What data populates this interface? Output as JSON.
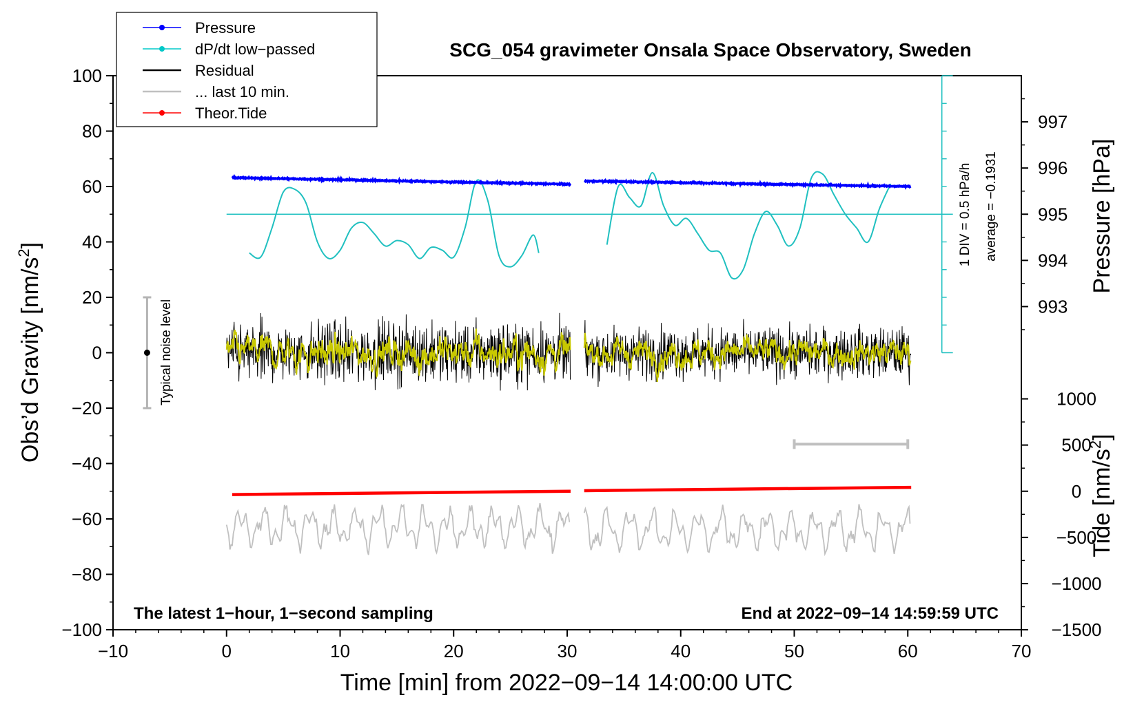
{
  "chart_data": {
    "type": "line",
    "title": "SCG_054 gravimeter Onsala Space Observatory, Sweden",
    "xlabel": "Time [min] from 2022−09−14 14:00:00 UTC",
    "ylabel_left": "Obs’d Gravity [nm/s²]",
    "ylabel_left_main": "Obs’d Gravity [nm/s",
    "ylabel_right_pressure": "Pressure [hPa]",
    "ylabel_right_tide": "Tide [nm/s²]",
    "ylabel_right_tide_main": "Tide [nm/s",
    "sup2": "2",
    "xlim": [
      -10,
      70
    ],
    "ylim": [
      -100,
      100
    ],
    "x_ticks": [
      -10,
      0,
      10,
      20,
      30,
      40,
      50,
      60,
      70
    ],
    "x_tick_labels": [
      "−10",
      "0",
      "10",
      "20",
      "30",
      "40",
      "50",
      "60",
      "70"
    ],
    "y_ticks": [
      -100,
      -80,
      -60,
      -40,
      -20,
      0,
      20,
      40,
      60,
      80,
      100
    ],
    "y_tick_labels": [
      "−100",
      "−80",
      "−60",
      "−40",
      "−20",
      "0",
      "20",
      "40",
      "60",
      "80",
      "100"
    ],
    "pressure_axis": {
      "ticks_hpa": [
        993,
        994,
        995,
        996,
        997
      ],
      "tick_labels": [
        "993",
        "994",
        "995",
        "996",
        "997"
      ],
      "gravity_at_995": 50,
      "gravity_per_hpa": 16.67
    },
    "tide_axis": {
      "ticks": [
        -1500,
        -1000,
        -500,
        0,
        500,
        1000
      ],
      "tick_labels": [
        "−1500",
        "−1000",
        "−500",
        "0",
        "500",
        "1000"
      ],
      "gravity_at_zero": -50,
      "gravity_per_500": 16.67
    },
    "legend": [
      {
        "label": "Pressure",
        "color": "#0000ff",
        "marker": true
      },
      {
        "label": "dP/dt low−passed",
        "color": "#00c8c8",
        "marker": true
      },
      {
        "label": "Residual",
        "color": "#000000",
        "marker": false
      },
      {
        "label": "... last 10 min.",
        "color": "#c0c0c0",
        "marker": false
      },
      {
        "label": "Theor.Tide",
        "color": "#ff0000",
        "marker": true
      }
    ],
    "colors": {
      "pressure": "#0000ff",
      "dpdt": "#20c0c0",
      "residual": "#000000",
      "residual_smooth": "#c8c800",
      "last10": "#c0c0c0",
      "tide": "#ff0000",
      "noise_bar": "#b4b4b4",
      "scale_bar": "#c0c0c0"
    },
    "annotations": {
      "noise_label": "Typical noise level",
      "div_label": "1 DIV = 0.5 hPa/h",
      "average_label": "average = −0.1931",
      "bottom_left_note": "The latest 1−hour, 1−second sampling",
      "bottom_right_note": "End at 2022−09−14 14:59:59 UTC"
    },
    "noise_bar": {
      "x": -7,
      "center": 0,
      "low": -20,
      "high": 20
    },
    "scale_bar": {
      "x_start": 50,
      "x_end": 60,
      "y": -33
    },
    "dpdt_scale": {
      "x": 63,
      "y_top": 100,
      "y_bottom": 0,
      "baseline": 50,
      "tick_step": 10
    },
    "series": [
      {
        "name": "Pressure",
        "segments": [
          {
            "x_start": 0.5,
            "x_end": 30.3,
            "y_start": 63.2,
            "y_end": 60.8
          },
          {
            "x_start": 31.5,
            "x_end": 60.3,
            "y_start": 62.0,
            "y_end": 60.0
          }
        ]
      },
      {
        "name": "dP/dt low-passed",
        "segments": [
          [
            [
              2,
              36
            ],
            [
              3,
              34.5
            ],
            [
              4,
              45
            ],
            [
              5,
              58
            ],
            [
              6,
              59
            ],
            [
              7,
              54
            ],
            [
              8,
              40
            ],
            [
              9,
              34
            ],
            [
              10,
              37
            ],
            [
              11,
              45
            ],
            [
              12,
              47
            ],
            [
              13,
              43
            ],
            [
              14,
              38.5
            ],
            [
              15,
              40.5
            ],
            [
              16,
              39
            ],
            [
              17,
              34
            ],
            [
              18,
              38
            ],
            [
              19,
              37
            ],
            [
              20,
              34.5
            ],
            [
              21,
              45
            ],
            [
              22,
              62
            ],
            [
              23,
              55
            ],
            [
              24,
              35
            ],
            [
              25,
              31
            ],
            [
              26,
              35
            ],
            [
              27,
              42.5
            ],
            [
              27.5,
              36
            ]
          ],
          [
            [
              33.5,
              39
            ],
            [
              34.5,
              60
            ],
            [
              35.5,
              56
            ],
            [
              36.5,
              53
            ],
            [
              37.5,
              65
            ],
            [
              38.5,
              53
            ],
            [
              39.5,
              46
            ],
            [
              40.5,
              48.5
            ],
            [
              41.5,
              43
            ],
            [
              42.5,
              37
            ],
            [
              43.5,
              36
            ],
            [
              44.5,
              27
            ],
            [
              45.5,
              30
            ],
            [
              46.5,
              43
            ],
            [
              47.5,
              51
            ],
            [
              48.5,
              46
            ],
            [
              49.5,
              38.5
            ],
            [
              50.5,
              45
            ],
            [
              51.5,
              63
            ],
            [
              52.5,
              64.5
            ],
            [
              53.5,
              57
            ],
            [
              54.5,
              50
            ],
            [
              55.5,
              45
            ],
            [
              56.5,
              40
            ],
            [
              57.5,
              52
            ],
            [
              58.5,
              61
            ]
          ]
        ]
      },
      {
        "name": "Residual",
        "segments": [
          {
            "x_start": 0,
            "x_end": 30.3,
            "amplitude": 13
          },
          {
            "x_start": 31.5,
            "x_end": 60.3,
            "amplitude": 11
          }
        ]
      },
      {
        "name": "... last 10 min.",
        "segments": [
          {
            "x_start": 0,
            "x_end": 30.3,
            "center": -63,
            "amplitude": 8
          },
          {
            "x_start": 31.5,
            "x_end": 60.3,
            "center": -64,
            "amplitude": 8
          }
        ]
      },
      {
        "name": "Theor.Tide",
        "segments": [
          {
            "x_start": 0.5,
            "x_end": 30.3,
            "y_start": -51.2,
            "y_end": -50.0
          },
          {
            "x_start": 31.5,
            "x_end": 60.3,
            "y_start": -49.8,
            "y_end": -48.6
          }
        ]
      }
    ]
  }
}
